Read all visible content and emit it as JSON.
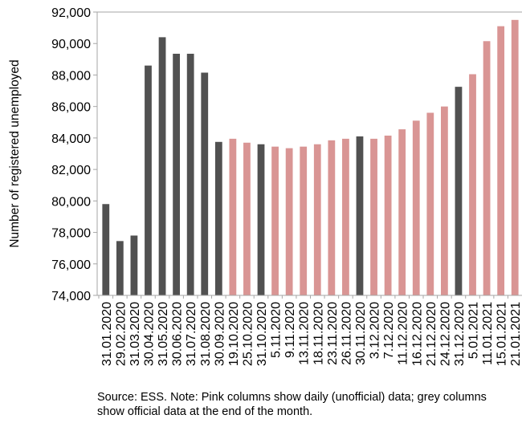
{
  "chart_data": {
    "type": "bar",
    "ylabel": "Number of registered unemployed",
    "xlabel": "",
    "ylim": [
      74000,
      92000
    ],
    "ytick_step": 2000,
    "ytick_labels": [
      "74,000",
      "76,000",
      "78,000",
      "80,000",
      "82,000",
      "84,000",
      "86,000",
      "88,000",
      "90,000",
      "92,000"
    ],
    "grid": false,
    "categories": [
      "31.01.2020",
      "29.02.2020",
      "31.03.2020",
      "30.04.2020",
      "31.05.2020",
      "30.06.2020",
      "31.07.2020",
      "31.08.2020",
      "30.09.2020",
      "19.10.2020",
      "25.10.2020",
      "31.10.2020",
      "5.11.2020",
      "9.11.2020",
      "13.11.2020",
      "18.11.2020",
      "23.11.2020",
      "26.11.2020",
      "30.11.2020",
      "3.12.2020",
      "7.12.2020",
      "11.12.2020",
      "16.12.2020",
      "21.12.2020",
      "24.12.2020",
      "31.12.2020",
      "5.01.2021",
      "11.01.2021",
      "15.01.2021",
      "21.01.2021"
    ],
    "values": [
      79800,
      77450,
      77800,
      88600,
      90400,
      89350,
      89350,
      88150,
      83750,
      83950,
      83700,
      83600,
      83450,
      83350,
      83450,
      83600,
      83850,
      83950,
      84100,
      83950,
      84150,
      84550,
      85100,
      85600,
      86000,
      87250,
      88050,
      90150,
      91100,
      91500
    ],
    "kinds": [
      "official",
      "official",
      "official",
      "official",
      "official",
      "official",
      "official",
      "official",
      "official",
      "daily",
      "daily",
      "official",
      "daily",
      "daily",
      "daily",
      "daily",
      "daily",
      "daily",
      "official",
      "daily",
      "daily",
      "daily",
      "daily",
      "daily",
      "daily",
      "official",
      "daily",
      "daily",
      "daily",
      "daily"
    ],
    "colors": {
      "official": "#515151",
      "daily": "#d99594"
    }
  },
  "note": "Source: ESS. Note: Pink columns show daily (unofficial) data; grey columns show official data at the end of the month."
}
